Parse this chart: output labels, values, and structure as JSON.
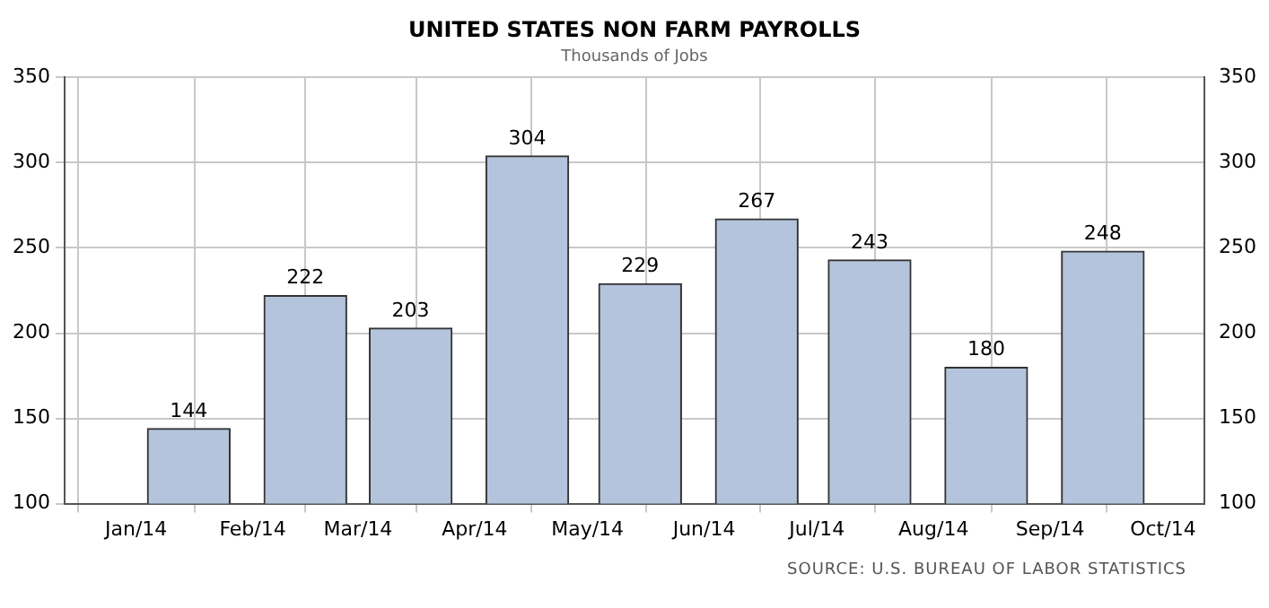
{
  "chart_data": {
    "type": "bar",
    "title": "UNITED STATES NON FARM PAYROLLS",
    "subtitle": "Thousands of Jobs",
    "x": [
      "2014-01-15",
      "2014-02-15",
      "2014-03-15",
      "2014-04-15",
      "2014-05-15",
      "2014-06-15",
      "2014-07-15",
      "2014-08-15",
      "2014-09-15"
    ],
    "values": [
      144,
      222,
      203,
      304,
      229,
      267,
      243,
      180,
      248
    ],
    "color": "#b4c4dc",
    "data_labels": true,
    "xlim": [
      "2013-12-13",
      "2014-10-12"
    ],
    "xticks": [
      {
        "value": "2014-01",
        "label": "Jan/14"
      },
      {
        "value": "2014-02",
        "label": "Feb/14"
      },
      {
        "value": "2014-03",
        "label": "Mar/14"
      },
      {
        "value": "2014-04",
        "label": "Apr/14"
      },
      {
        "value": "2014-05",
        "label": "May/14"
      },
      {
        "value": "2014-06",
        "label": "Jun/14"
      },
      {
        "value": "2014-07",
        "label": "Jul/14"
      },
      {
        "value": "2014-08",
        "label": "Aug/14"
      },
      {
        "value": "2014-09",
        "label": "Sep/14"
      },
      {
        "value": "2014-10",
        "label": "Oct/14"
      }
    ],
    "ylim": [
      100,
      350
    ],
    "yticks": [
      100,
      150,
      200,
      250,
      300,
      350
    ],
    "y2lim": [
      100,
      350
    ],
    "y2ticks": [
      100,
      150,
      200,
      250,
      300,
      350
    ],
    "grid": true,
    "legend": false,
    "annotations": [
      "SOURCE: U.S. BUREAU OF LABOR STATISTICS"
    ]
  }
}
